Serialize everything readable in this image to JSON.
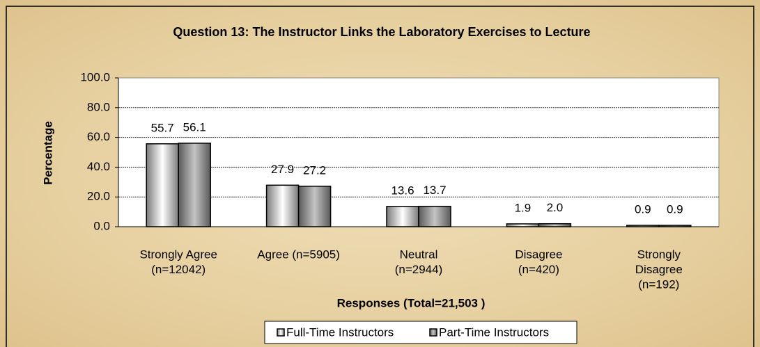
{
  "chart_data": {
    "type": "bar",
    "title": "Question 13:  The Instructor Links the Laboratory Exercises to Lecture",
    "x_label": "Responses (Total=21,503 )",
    "y_label": "Percentage",
    "categories": [
      [
        "Strongly Agree",
        "(n=12042)"
      ],
      [
        "Agree (n=5905)"
      ],
      [
        "Neutral",
        "(n=2944)"
      ],
      [
        "Disagree",
        "(n=420)"
      ],
      [
        "Strongly",
        "Disagree",
        "(n=192)"
      ]
    ],
    "series": [
      {
        "name": "Full-Time Instructors",
        "color": "#d8d8d8",
        "values": [
          55.7,
          27.9,
          13.6,
          1.9,
          0.9
        ],
        "value_labels": [
          "55.7",
          "27.9",
          "13.6",
          "1.9",
          "0.9"
        ]
      },
      {
        "name": "Part-Time Instructors",
        "color": "#8a8a8a",
        "values": [
          56.1,
          27.2,
          13.7,
          2,
          0.9
        ],
        "value_labels": [
          "56.1",
          "27.2",
          "13.7",
          "2.0",
          "0.9"
        ]
      }
    ],
    "ylim": [
      0,
      100
    ],
    "yticks": [
      {
        "value": 0,
        "label": "0.0"
      },
      {
        "value": 20,
        "label": "20.0"
      },
      {
        "value": 40,
        "label": "40.0"
      },
      {
        "value": 60,
        "label": "60.0"
      },
      {
        "value": 80,
        "label": "80.0"
      },
      {
        "value": 100,
        "label": "100.0"
      }
    ],
    "grid": true,
    "legend": "bottom"
  }
}
